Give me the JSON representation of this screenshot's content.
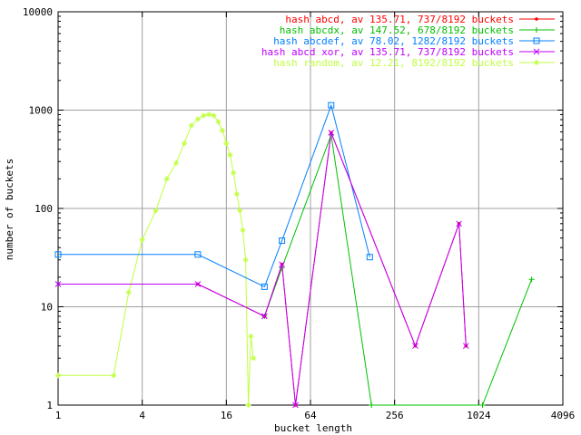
{
  "chart_data": {
    "type": "line",
    "xlabel": "bucket length",
    "ylabel": "number of buckets",
    "xscale": "log2",
    "yscale": "log10",
    "xlim": [
      1,
      4096
    ],
    "ylim": [
      1,
      10000
    ],
    "x_ticks": [
      {
        "value": 1,
        "label": "1"
      },
      {
        "value": 4,
        "label": "4"
      },
      {
        "value": 16,
        "label": "16"
      },
      {
        "value": 64,
        "label": "64"
      },
      {
        "value": 256,
        "label": "256"
      },
      {
        "value": 1024,
        "label": "1024"
      },
      {
        "value": 4096,
        "label": "4096"
      }
    ],
    "y_ticks": [
      {
        "value": 1,
        "label": "1"
      },
      {
        "value": 10,
        "label": "10"
      },
      {
        "value": 100,
        "label": "100"
      },
      {
        "value": 1000,
        "label": "1000"
      },
      {
        "value": 10000,
        "label": "10000"
      }
    ],
    "grid": true,
    "legend_position": "top-right",
    "series": [
      {
        "name": "hash abcd, av 135.71, 737/8192 buckets",
        "color": "#ff0000",
        "marker": "dot",
        "points": [
          [
            10,
            17
          ],
          [
            30,
            8
          ],
          [
            40,
            27
          ],
          [
            50,
            1
          ],
          [
            90,
            590
          ],
          [
            360,
            4
          ],
          [
            740,
            70
          ],
          [
            830,
            4
          ]
        ]
      },
      {
        "name": "hash abcdx, av 147.52, 678/8192 buckets",
        "color": "#00c000",
        "marker": "plus",
        "points": [
          [
            30,
            8
          ],
          [
            40,
            25
          ],
          [
            90,
            560
          ],
          [
            175,
            1
          ],
          [
            1090,
            1
          ],
          [
            2450,
            19
          ]
        ]
      },
      {
        "name": "hash abcdef, av 78.02, 1282/8192 buckets",
        "color": "#0080ff",
        "marker": "square",
        "points": [
          [
            1,
            34
          ],
          [
            10,
            34
          ],
          [
            30,
            16
          ],
          [
            40,
            47
          ],
          [
            90,
            1120
          ],
          [
            170,
            32
          ]
        ]
      },
      {
        "name": "hash abcd xor, av 135.71, 737/8192 buckets",
        "color": "#c000ff",
        "marker": "cross",
        "points": [
          [
            1,
            17
          ],
          [
            10,
            17
          ],
          [
            30,
            8
          ],
          [
            40,
            27
          ],
          [
            50,
            1
          ],
          [
            90,
            590
          ],
          [
            360,
            4
          ],
          [
            740,
            70
          ],
          [
            830,
            4
          ]
        ]
      },
      {
        "name": "hash random, av 12.21, 8192/8192 buckets",
        "color": "#c0ff40",
        "marker": "star",
        "points": [
          [
            1,
            2
          ],
          [
            2.5,
            2
          ],
          [
            3.2,
            14
          ],
          [
            4,
            48
          ],
          [
            5,
            95
          ],
          [
            6,
            200
          ],
          [
            7,
            290
          ],
          [
            8,
            460
          ],
          [
            9,
            700
          ],
          [
            10,
            810
          ],
          [
            11,
            880
          ],
          [
            12,
            905
          ],
          [
            13,
            880
          ],
          [
            14,
            760
          ],
          [
            15,
            620
          ],
          [
            16,
            460
          ],
          [
            17,
            350
          ],
          [
            18,
            230
          ],
          [
            19,
            140
          ],
          [
            20,
            95
          ],
          [
            21,
            60
          ],
          [
            22,
            30
          ],
          [
            23,
            1
          ],
          [
            24,
            5
          ],
          [
            25,
            3
          ]
        ]
      }
    ]
  }
}
